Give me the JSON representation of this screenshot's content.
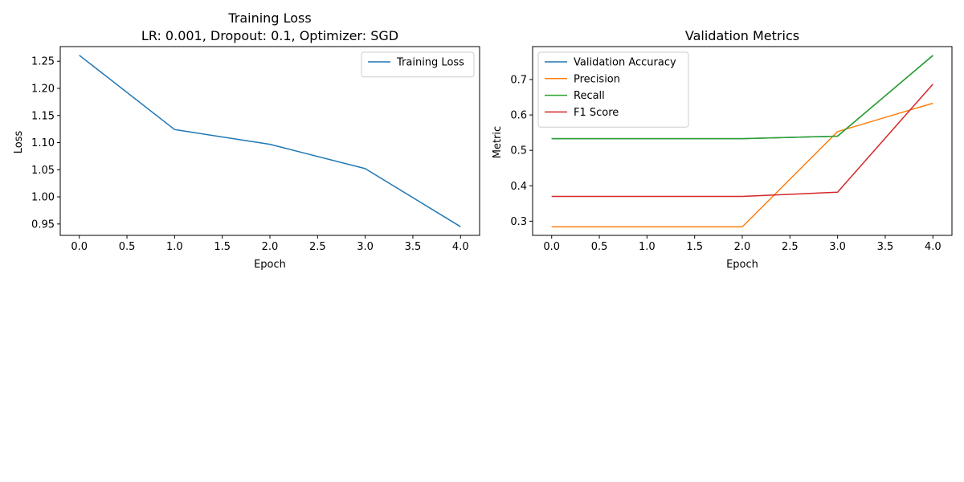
{
  "chart_data": [
    {
      "type": "line",
      "title": "Training Loss",
      "subtitle": "LR: 0.001, Dropout: 0.1, Optimizer: SGD",
      "xlabel": "Epoch",
      "ylabel": "Loss",
      "x": [
        0,
        1,
        2,
        3,
        4
      ],
      "xlim": [
        -0.2,
        4.2
      ],
      "ylim": [
        0.929,
        1.277
      ],
      "xticks": [
        "0.0",
        "0.5",
        "1.0",
        "1.5",
        "2.0",
        "2.5",
        "3.0",
        "3.5",
        "4.0"
      ],
      "yticks": [
        "0.95",
        "1.00",
        "1.05",
        "1.10",
        "1.15",
        "1.20",
        "1.25"
      ],
      "grid": false,
      "legend_position": "top-right",
      "series": [
        {
          "name": "Training Loss",
          "color": "#1f77b4",
          "values": [
            1.261,
            1.124,
            1.097,
            1.052,
            0.945
          ]
        }
      ]
    },
    {
      "type": "line",
      "title": "Validation Metrics",
      "xlabel": "Epoch",
      "ylabel": "Metric",
      "x": [
        0,
        1,
        2,
        3,
        4
      ],
      "xlim": [
        -0.2,
        4.2
      ],
      "ylim": [
        0.26,
        0.793
      ],
      "xticks": [
        "0.0",
        "0.5",
        "1.0",
        "1.5",
        "2.0",
        "2.5",
        "3.0",
        "3.5",
        "4.0"
      ],
      "yticks": [
        "0.3",
        "0.4",
        "0.5",
        "0.6",
        "0.7"
      ],
      "grid": false,
      "legend_position": "top-left",
      "series": [
        {
          "name": "Validation Accuracy",
          "color": "#1f77b4",
          "values": [
            0.533,
            0.533,
            0.533,
            0.54,
            0.768
          ]
        },
        {
          "name": "Precision",
          "color": "#ff7f0e",
          "values": [
            0.284,
            0.284,
            0.284,
            0.553,
            0.633
          ]
        },
        {
          "name": "Recall",
          "color": "#2ca02c",
          "values": [
            0.533,
            0.533,
            0.533,
            0.54,
            0.768
          ]
        },
        {
          "name": "F1 Score",
          "color": "#d62728",
          "values": [
            0.37,
            0.37,
            0.37,
            0.382,
            0.687
          ]
        }
      ]
    }
  ]
}
